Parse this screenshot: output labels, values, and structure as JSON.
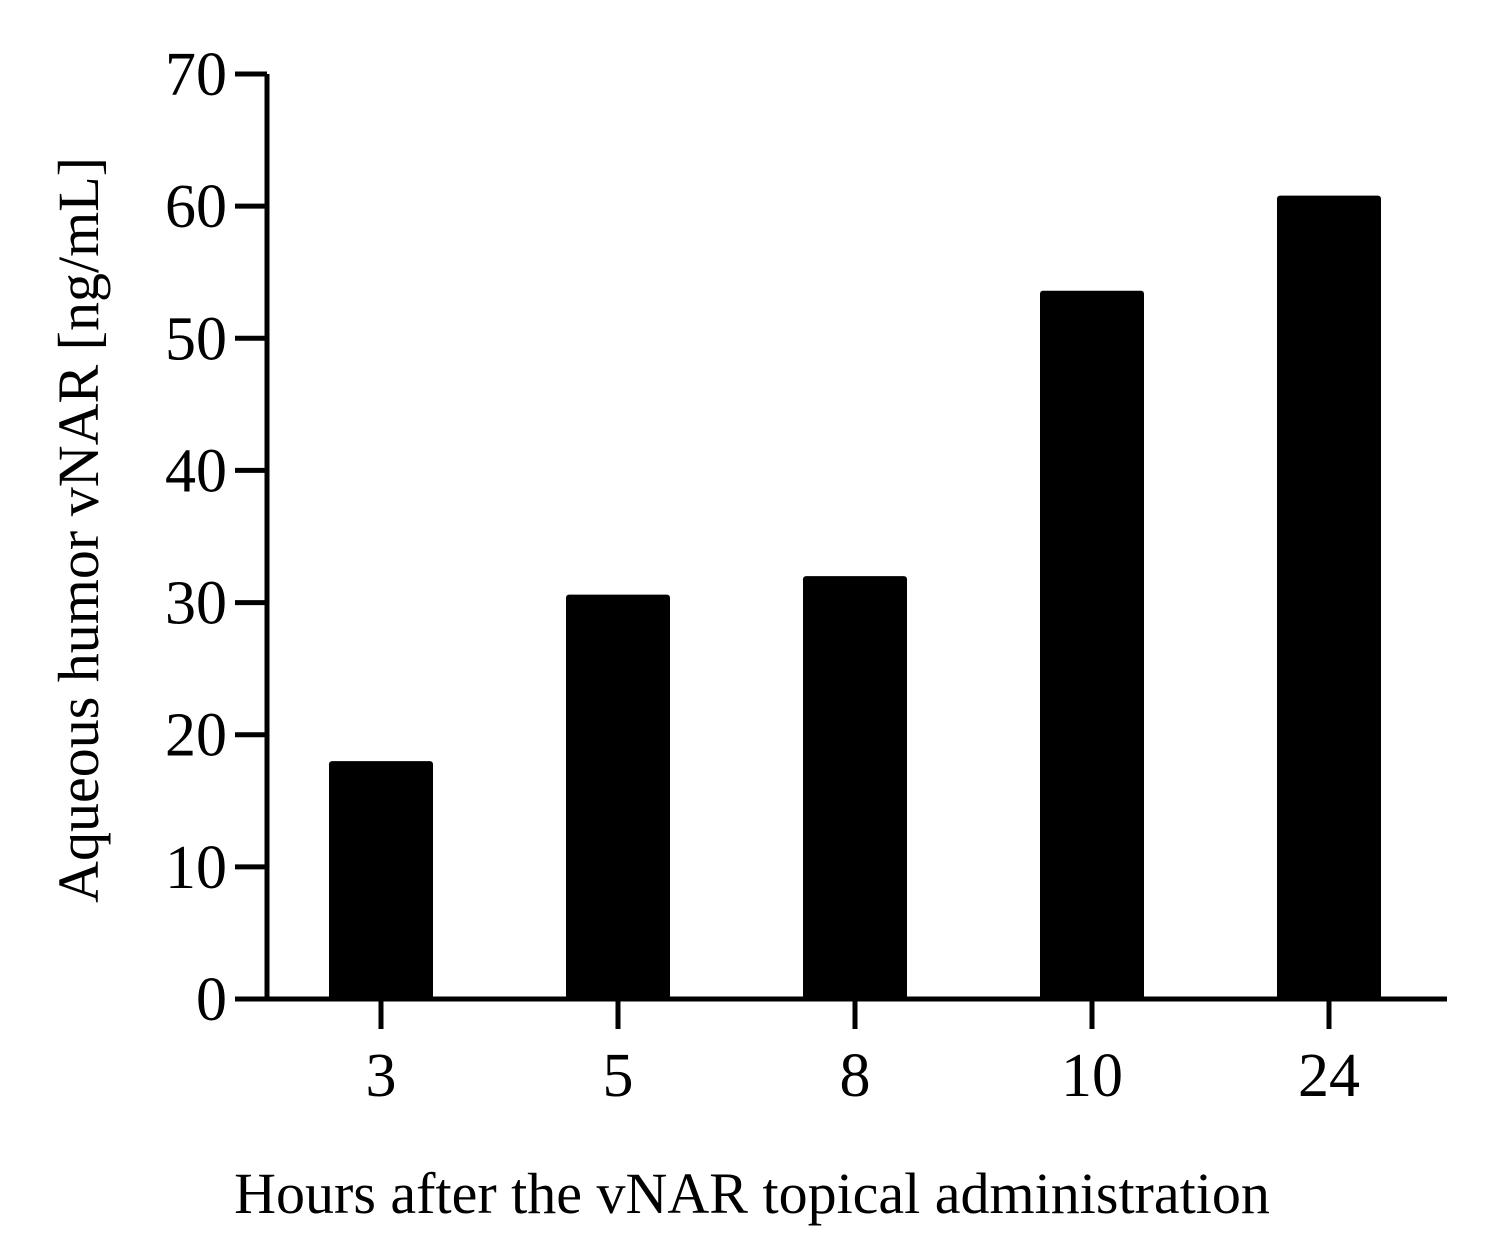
{
  "chart_data": {
    "type": "bar",
    "title": "",
    "xlabel": "Hours after the vNAR topical administration",
    "ylabel": "Aqueous humor vNAR [ng/mL]",
    "categories": [
      "3",
      "5",
      "8",
      "10",
      "24"
    ],
    "values": [
      18,
      30.6,
      32,
      53.6,
      60.8
    ],
    "ylim": [
      0,
      70
    ],
    "yticks": [
      "0",
      "10",
      "20",
      "30",
      "40",
      "50",
      "60",
      "70"
    ],
    "grid": false,
    "legend": "none",
    "bar_color": "#000000",
    "axis_color": "#000000"
  }
}
